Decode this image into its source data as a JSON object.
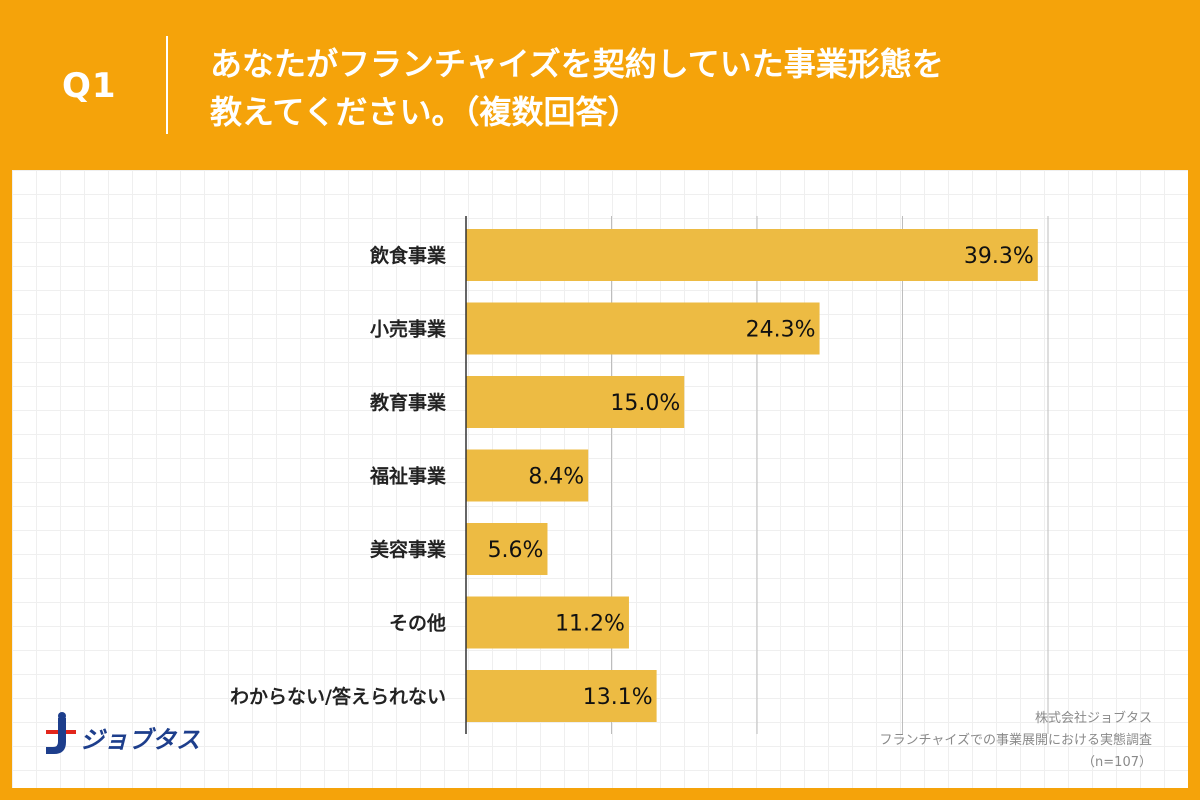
{
  "header": {
    "question_label": "Q1",
    "title_line1": "あなたがフランチャイズを契約していた事業形態を",
    "title_line2": "教えてください。（複数回答）"
  },
  "chart_data": {
    "type": "bar",
    "orientation": "horizontal",
    "categories": [
      "飲食事業",
      "小売事業",
      "教育事業",
      "福祉事業",
      "美容事業",
      "その他",
      "わからない/答えられない"
    ],
    "values": [
      39.3,
      24.3,
      15.0,
      8.4,
      5.6,
      11.2,
      13.1
    ],
    "value_labels": [
      "39.3%",
      "24.3%",
      "15.0%",
      "8.4%",
      "5.6%",
      "11.2%",
      "13.1%"
    ],
    "xlim": [
      0,
      40
    ],
    "grid": true,
    "bar_color": "#EDBB43"
  },
  "logo": {
    "text": "ジョブタス"
  },
  "source": {
    "company": "株式会社ジョブタス",
    "survey": "フランチャイズでの事業展開における実態調査",
    "sample": "（n=107）"
  },
  "colors": {
    "background": "#F5A30A",
    "panel": "#FFFFFF",
    "bar": "#EDBB43",
    "logo_blue": "#1D3E8C",
    "logo_red": "#E2261C"
  }
}
